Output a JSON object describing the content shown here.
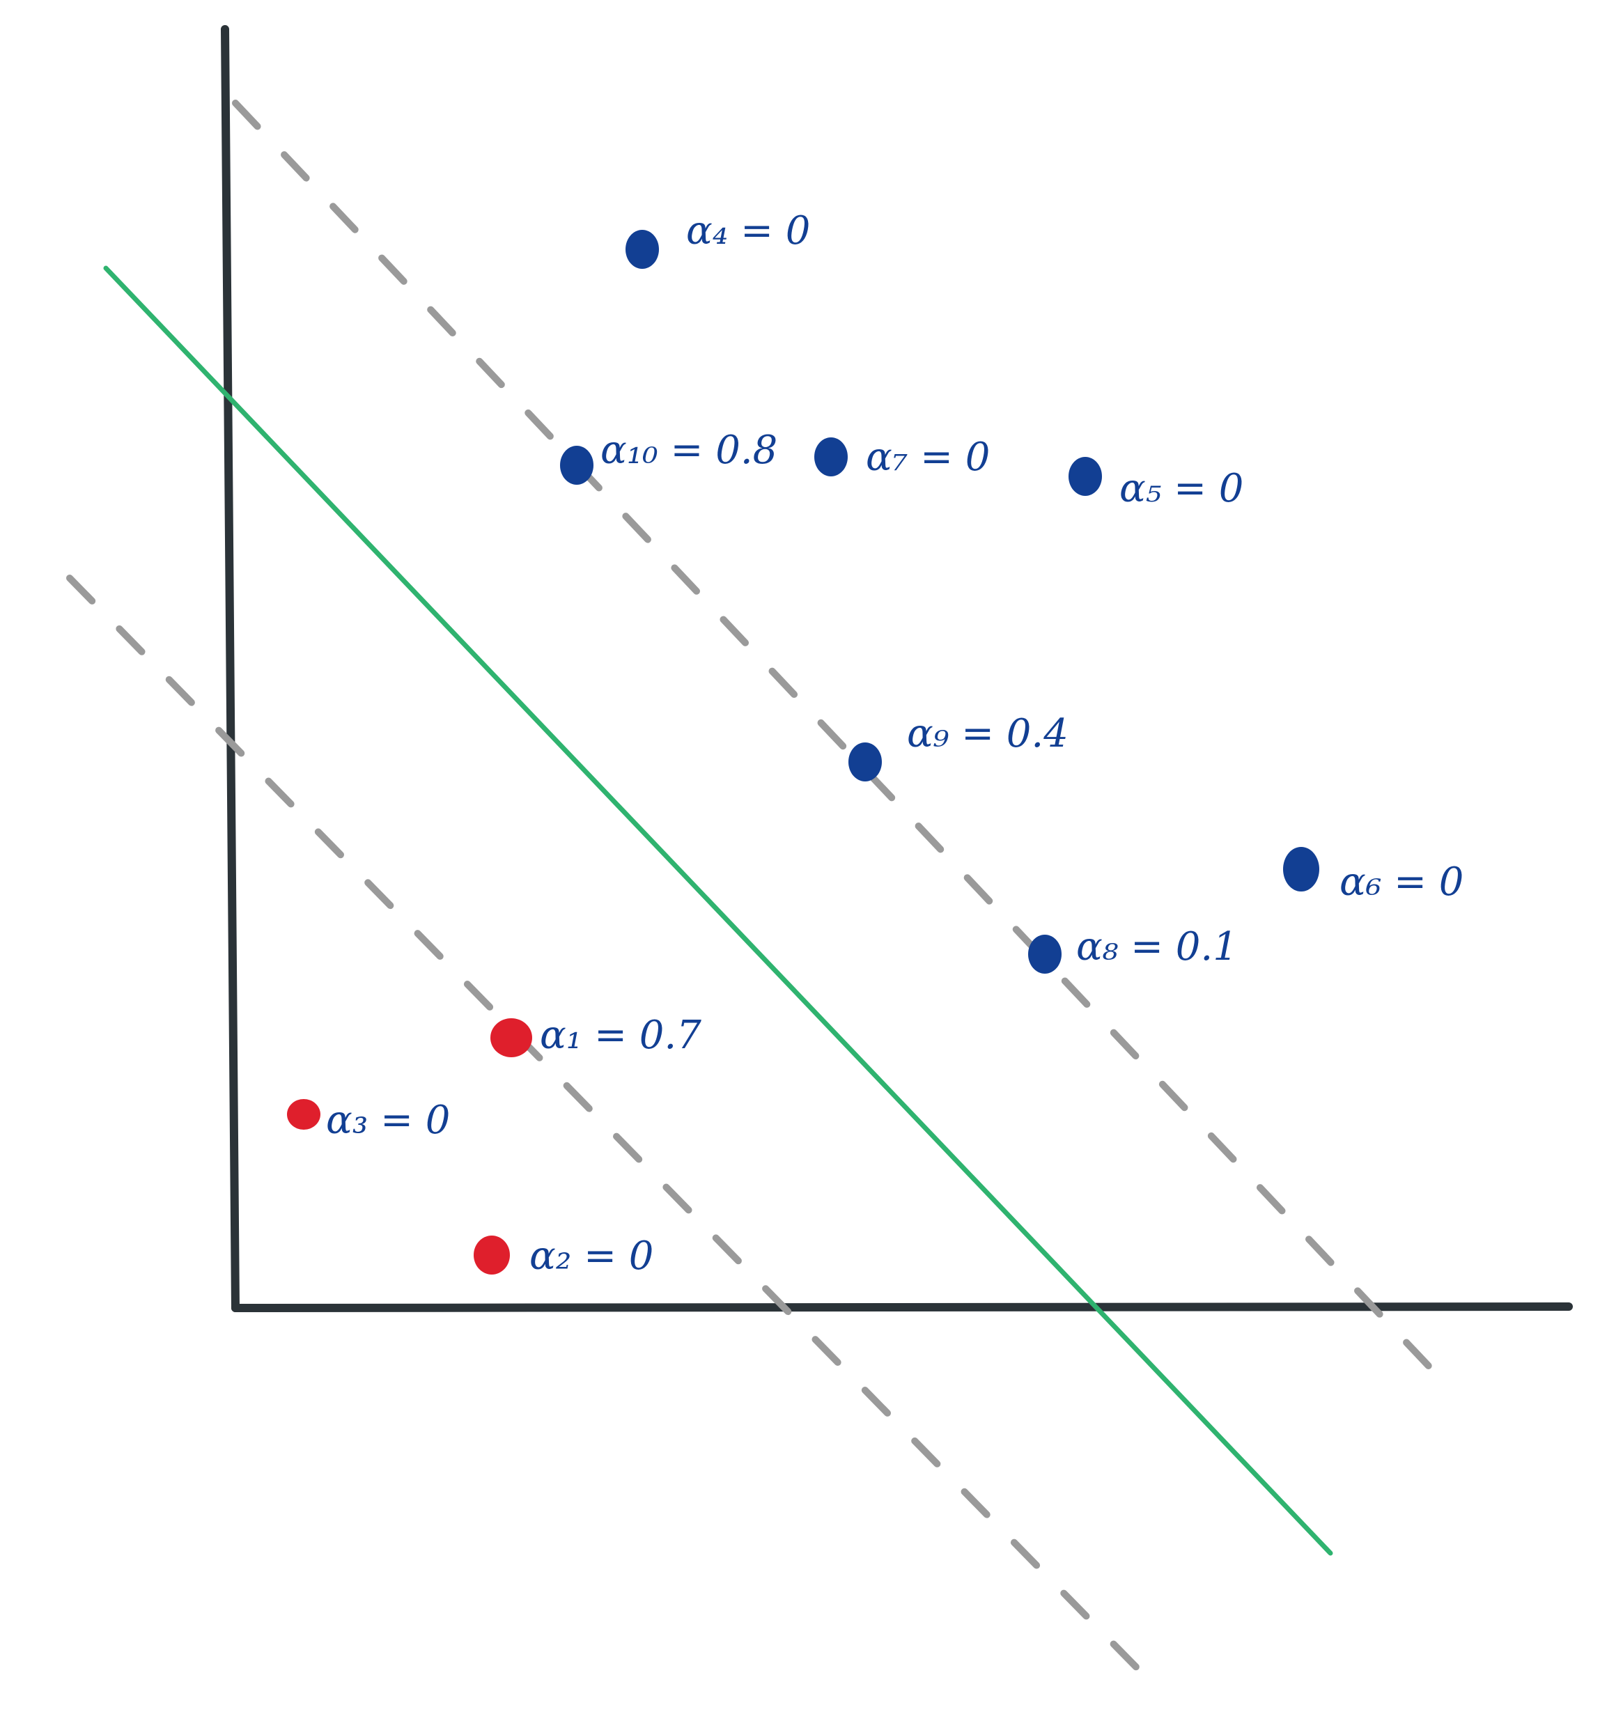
{
  "colors": {
    "background": "#ffffff",
    "axis": "#2b3338",
    "boundary": "#2fb36f",
    "margin": "#9a9a9a",
    "class_positive": "#123f93",
    "class_negative": "#df1f2c",
    "label_text": "#123f93"
  },
  "points": [
    {
      "id": "p4",
      "class": "positive",
      "label": "α₄ = 0"
    },
    {
      "id": "p10",
      "class": "positive",
      "label": "α₁₀ = 0.8"
    },
    {
      "id": "p7",
      "class": "positive",
      "label": "α₇ = 0"
    },
    {
      "id": "p5",
      "class": "positive",
      "label": "α₅ = 0"
    },
    {
      "id": "p9",
      "class": "positive",
      "label": "α₉ = 0.4"
    },
    {
      "id": "p6",
      "class": "positive",
      "label": "α₆ = 0"
    },
    {
      "id": "p8",
      "class": "positive",
      "label": "α₈ = 0.1"
    },
    {
      "id": "p1",
      "class": "negative",
      "label": "α₁ = 0.7"
    },
    {
      "id": "p3",
      "class": "negative",
      "label": "α₃ = 0"
    },
    {
      "id": "p2",
      "class": "negative",
      "label": "α₂ = 0"
    }
  ]
}
